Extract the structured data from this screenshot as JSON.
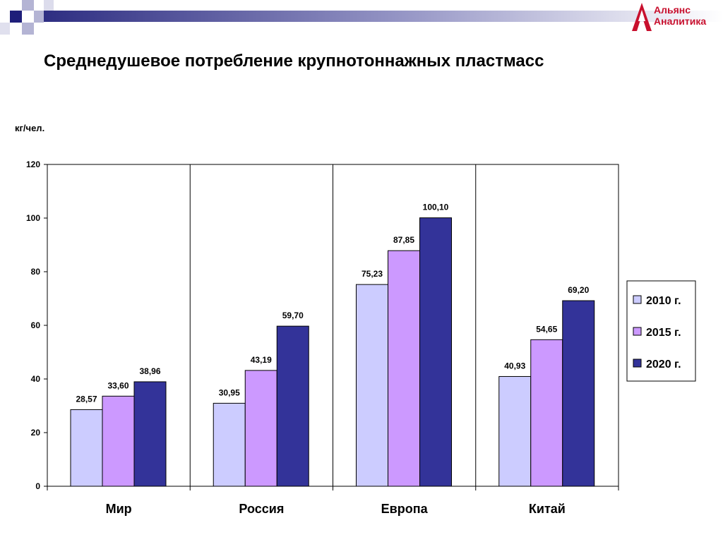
{
  "slide": {
    "title": "Среднедушевое потребление крупнотоннажных пластмасс",
    "logo": {
      "line1": "Альянс",
      "line2": "Аналитика"
    }
  },
  "colors": {
    "s2010": "#ccccff",
    "s2015": "#cc99ff",
    "s2020": "#333399",
    "axis": "#000000",
    "header_gradient": [
      "#2e2e82",
      "#ffffff"
    ]
  },
  "chart_data": {
    "type": "bar",
    "title": "",
    "ylabel": "кг/чел.",
    "xlabel": "",
    "categories": [
      "Мир",
      "Россия",
      "Европа",
      "Китай"
    ],
    "series": [
      {
        "name": "2010 г.",
        "values": [
          28.57,
          30.95,
          75.23,
          40.93
        ],
        "labels": [
          "28,57",
          "30,95",
          "75,23",
          "40,93"
        ],
        "color": "#ccccff"
      },
      {
        "name": "2015 г.",
        "values": [
          33.6,
          43.19,
          87.85,
          54.65
        ],
        "labels": [
          "33,60",
          "43,19",
          "87,85",
          "54,65"
        ],
        "color": "#cc99ff"
      },
      {
        "name": "2020 г.",
        "values": [
          38.96,
          59.7,
          100.1,
          69.2
        ],
        "labels": [
          "38,96",
          "59,70",
          "100,10",
          "69,20"
        ],
        "color": "#333399"
      }
    ],
    "ylim": [
      0,
      120
    ],
    "yticks": [
      0,
      20,
      40,
      60,
      80,
      100,
      120
    ],
    "grid": false,
    "category_separators": true,
    "legend": "right"
  }
}
